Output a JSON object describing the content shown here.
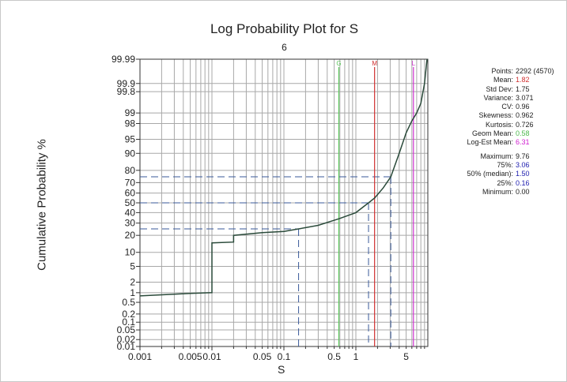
{
  "chart_data": {
    "type": "line",
    "title": "Log Probability Plot for S",
    "subtitle": "6",
    "xlabel": "S",
    "ylabel": "Cumulative Probability %",
    "xscale": "log",
    "xlim": [
      0.001,
      10
    ],
    "yscale": "probability",
    "ylim": [
      0.01,
      99.99
    ],
    "x_tick_labels": [
      "0.001",
      "0.005",
      "0.01",
      "0.05",
      "0.1",
      "0.5",
      "1",
      "5"
    ],
    "x_tick_values": [
      0.001,
      0.005,
      0.01,
      0.05,
      0.1,
      0.5,
      1,
      5
    ],
    "y_ticks": [
      0.01,
      0.02,
      0.05,
      0.1,
      0.2,
      0.5,
      1,
      2,
      5,
      10,
      20,
      30,
      40,
      50,
      60,
      70,
      80,
      90,
      95,
      98,
      99,
      99.8,
      99.9,
      99.99
    ],
    "y_tick_labels": [
      "0.01",
      "0.02",
      "0.05",
      "0.1",
      "0.2",
      "0.5",
      "1",
      "2",
      "5",
      "10",
      "20",
      "30",
      "40",
      "50",
      "60",
      "70",
      "80",
      "90",
      "95",
      "98",
      "99",
      "99.8",
      "99.9",
      "99.99"
    ],
    "curve": [
      [
        0.001,
        0.8
      ],
      [
        0.005,
        0.95
      ],
      [
        0.01,
        1.0
      ],
      [
        0.01,
        15
      ],
      [
        0.02,
        15.5
      ],
      [
        0.02,
        20
      ],
      [
        0.05,
        22
      ],
      [
        0.1,
        23
      ],
      [
        0.16,
        25
      ],
      [
        0.3,
        28
      ],
      [
        0.58,
        34
      ],
      [
        1,
        40
      ],
      [
        1.5,
        50
      ],
      [
        1.82,
        55
      ],
      [
        2.4,
        65
      ],
      [
        3.06,
        75
      ],
      [
        4,
        90
      ],
      [
        5,
        96.5
      ],
      [
        6,
        98.3
      ],
      [
        7,
        99
      ],
      [
        8,
        99.5
      ],
      [
        9,
        99.9
      ],
      [
        9.76,
        99.99
      ]
    ],
    "reference_lines": [
      {
        "label": "G",
        "x": 0.58,
        "color": "#5cc95c"
      },
      {
        "label": "M",
        "x": 1.82,
        "color": "#d03030"
      },
      {
        "label": "L",
        "x": 6.31,
        "color": "#d030d0"
      }
    ],
    "percentile_lines": [
      {
        "p": 25,
        "x": 0.16
      },
      {
        "p": 50,
        "x": 1.5
      },
      {
        "p": 75,
        "x": 3.06
      }
    ],
    "colors": {
      "curve": "#2a4a3a",
      "grid": "#a8a8a8",
      "dashed": "#3a5a9a"
    }
  },
  "stats": [
    {
      "k": "Points:",
      "v": "2292 (4570)",
      "c": "#222"
    },
    {
      "k": "Mean:",
      "v": "1.82",
      "c": "#d03030"
    },
    {
      "k": "Std Dev:",
      "v": "1.75",
      "c": "#222"
    },
    {
      "k": "Variance:",
      "v": "3.071",
      "c": "#222"
    },
    {
      "k": "CV:",
      "v": "0.96",
      "c": "#222"
    },
    {
      "k": "Skewness:",
      "v": "0.962",
      "c": "#222"
    },
    {
      "k": "Kurtosis:",
      "v": "0.726",
      "c": "#222"
    },
    {
      "k": "Geom Mean:",
      "v": "0.58",
      "c": "#4cb84c"
    },
    {
      "k": "Log-Est Mean:",
      "v": "6.31",
      "c": "#d020d0"
    },
    {
      "k": "Maximum:",
      "v": "9.76",
      "c": "#222",
      "gap": true
    },
    {
      "k": "75%:",
      "v": "3.06",
      "c": "#2020b0"
    },
    {
      "k": "50% (median):",
      "v": "1.50",
      "c": "#2020b0"
    },
    {
      "k": "25%:",
      "v": "0.16",
      "c": "#2020b0"
    },
    {
      "k": "Minimum:",
      "v": "0.00",
      "c": "#222"
    }
  ]
}
